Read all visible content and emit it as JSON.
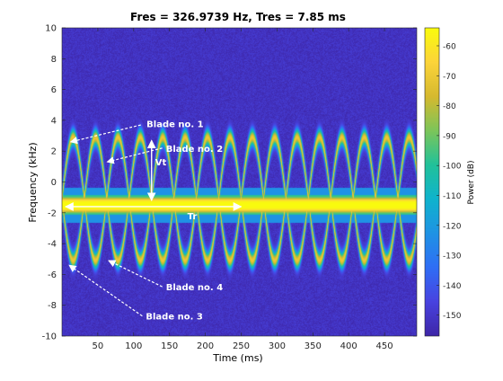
{
  "chart_data": {
    "type": "heatmap",
    "title": "Fres = 326.9739 Hz, Tres = 7.85 ms",
    "xlabel": "Time (ms)",
    "ylabel": "Frequency (kHz)",
    "colorbar_label": "Power (dB)",
    "xlim": [
      0,
      495
    ],
    "ylim": [
      -10,
      10
    ],
    "clim": [
      -157,
      -54
    ],
    "xticks": [
      50,
      100,
      150,
      200,
      250,
      300,
      350,
      400,
      450
    ],
    "yticks": [
      -10,
      -8,
      -6,
      -4,
      -2,
      0,
      2,
      4,
      6,
      8,
      10
    ],
    "cticks": [
      -60,
      -70,
      -80,
      -90,
      -100,
      -110,
      -120,
      -130,
      -140,
      -150
    ],
    "colormap": [
      "#3e26a8",
      "#4843e0",
      "#2f6ef5",
      "#1f93e4",
      "#0fb3cd",
      "#21c19a",
      "#7cc55a",
      "#d6b92f",
      "#fcd43a",
      "#f9fb0e"
    ],
    "signals": [
      {
        "name": "body",
        "center_khz": -1.5,
        "halfwidth_khz": 0.45,
        "peak_db": -54
      },
      {
        "name": "blade-upper",
        "center_khz": -1.1,
        "amplitude_khz": 4.0,
        "period_ms": 62.5,
        "phase": 0.0,
        "peak_db": -70
      },
      {
        "name": "blade-lower",
        "center_khz": -1.1,
        "amplitude_khz": 4.0,
        "period_ms": 62.5,
        "phase": 3.1416,
        "peak_db": -70
      }
    ],
    "noise_floor_db": -152,
    "annotations": [
      {
        "text": "Blade no. 1",
        "label_x": 118,
        "label_y": 3.8,
        "arrow_from": [
          110,
          3.7
        ],
        "arrow_to": [
          12,
          2.6
        ]
      },
      {
        "text": "Blade no. 2",
        "label_x": 145,
        "label_y": 2.2,
        "arrow_from": [
          140,
          2.2
        ],
        "arrow_to": [
          63,
          1.3
        ]
      },
      {
        "text": "Blade no. 4",
        "label_x": 145,
        "label_y": -6.8,
        "arrow_from": [
          140,
          -6.8
        ],
        "arrow_to": [
          65,
          -5.1
        ]
      },
      {
        "text": "Blade no. 3",
        "label_x": 117,
        "label_y": -8.7,
        "arrow_from": [
          112,
          -8.7
        ],
        "arrow_to": [
          10,
          -5.4
        ]
      },
      {
        "text": "Vt",
        "label_x": 130,
        "label_y": 1.3,
        "double_arrow": true,
        "from": [
          125,
          2.7
        ],
        "to": [
          125,
          -1.2
        ]
      },
      {
        "text": "Tr",
        "label_x": 175,
        "label_y": -2.2,
        "double_arrow": true,
        "from": [
          5,
          -1.6
        ],
        "to": [
          250,
          -1.6
        ]
      }
    ]
  }
}
